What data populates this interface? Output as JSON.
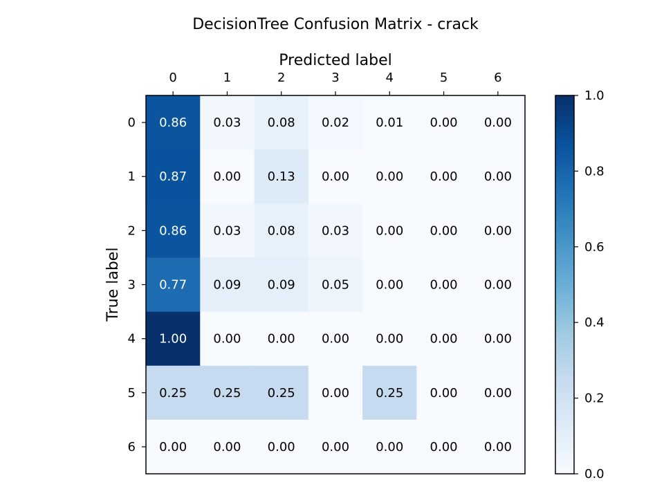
{
  "chart_data": {
    "type": "heatmap",
    "title": "DecisionTree Confusion Matrix - crack",
    "xlabel": "Predicted label",
    "ylabel": "True label",
    "x_categories": [
      "0",
      "1",
      "2",
      "3",
      "4",
      "5",
      "6"
    ],
    "y_categories": [
      "0",
      "1",
      "2",
      "3",
      "4",
      "5",
      "6"
    ],
    "values": [
      [
        0.86,
        0.03,
        0.08,
        0.02,
        0.01,
        0.0,
        0.0
      ],
      [
        0.87,
        0.0,
        0.13,
        0.0,
        0.0,
        0.0,
        0.0
      ],
      [
        0.86,
        0.03,
        0.08,
        0.03,
        0.0,
        0.0,
        0.0
      ],
      [
        0.77,
        0.09,
        0.09,
        0.05,
        0.0,
        0.0,
        0.0
      ],
      [
        1.0,
        0.0,
        0.0,
        0.0,
        0.0,
        0.0,
        0.0
      ],
      [
        0.25,
        0.25,
        0.25,
        0.0,
        0.25,
        0.0,
        0.0
      ],
      [
        0.0,
        0.0,
        0.0,
        0.0,
        0.0,
        0.0,
        0.0
      ]
    ],
    "value_labels": [
      [
        "0.86",
        "0.03",
        "0.08",
        "0.02",
        "0.01",
        "0.00",
        "0.00"
      ],
      [
        "0.87",
        "0.00",
        "0.13",
        "0.00",
        "0.00",
        "0.00",
        "0.00"
      ],
      [
        "0.86",
        "0.03",
        "0.08",
        "0.03",
        "0.00",
        "0.00",
        "0.00"
      ],
      [
        "0.77",
        "0.09",
        "0.09",
        "0.05",
        "0.00",
        "0.00",
        "0.00"
      ],
      [
        "1.00",
        "0.00",
        "0.00",
        "0.00",
        "0.00",
        "0.00",
        "0.00"
      ],
      [
        "0.25",
        "0.25",
        "0.25",
        "0.00",
        "0.25",
        "0.00",
        "0.00"
      ],
      [
        "0.00",
        "0.00",
        "0.00",
        "0.00",
        "0.00",
        "0.00",
        "0.00"
      ]
    ],
    "color_range": [
      0.0,
      1.0
    ],
    "colormap": "Blues",
    "colorbar_ticks": [
      "0.0",
      "0.2",
      "0.4",
      "0.6",
      "0.8",
      "1.0"
    ],
    "x_axis_position": "top",
    "grid": false
  }
}
